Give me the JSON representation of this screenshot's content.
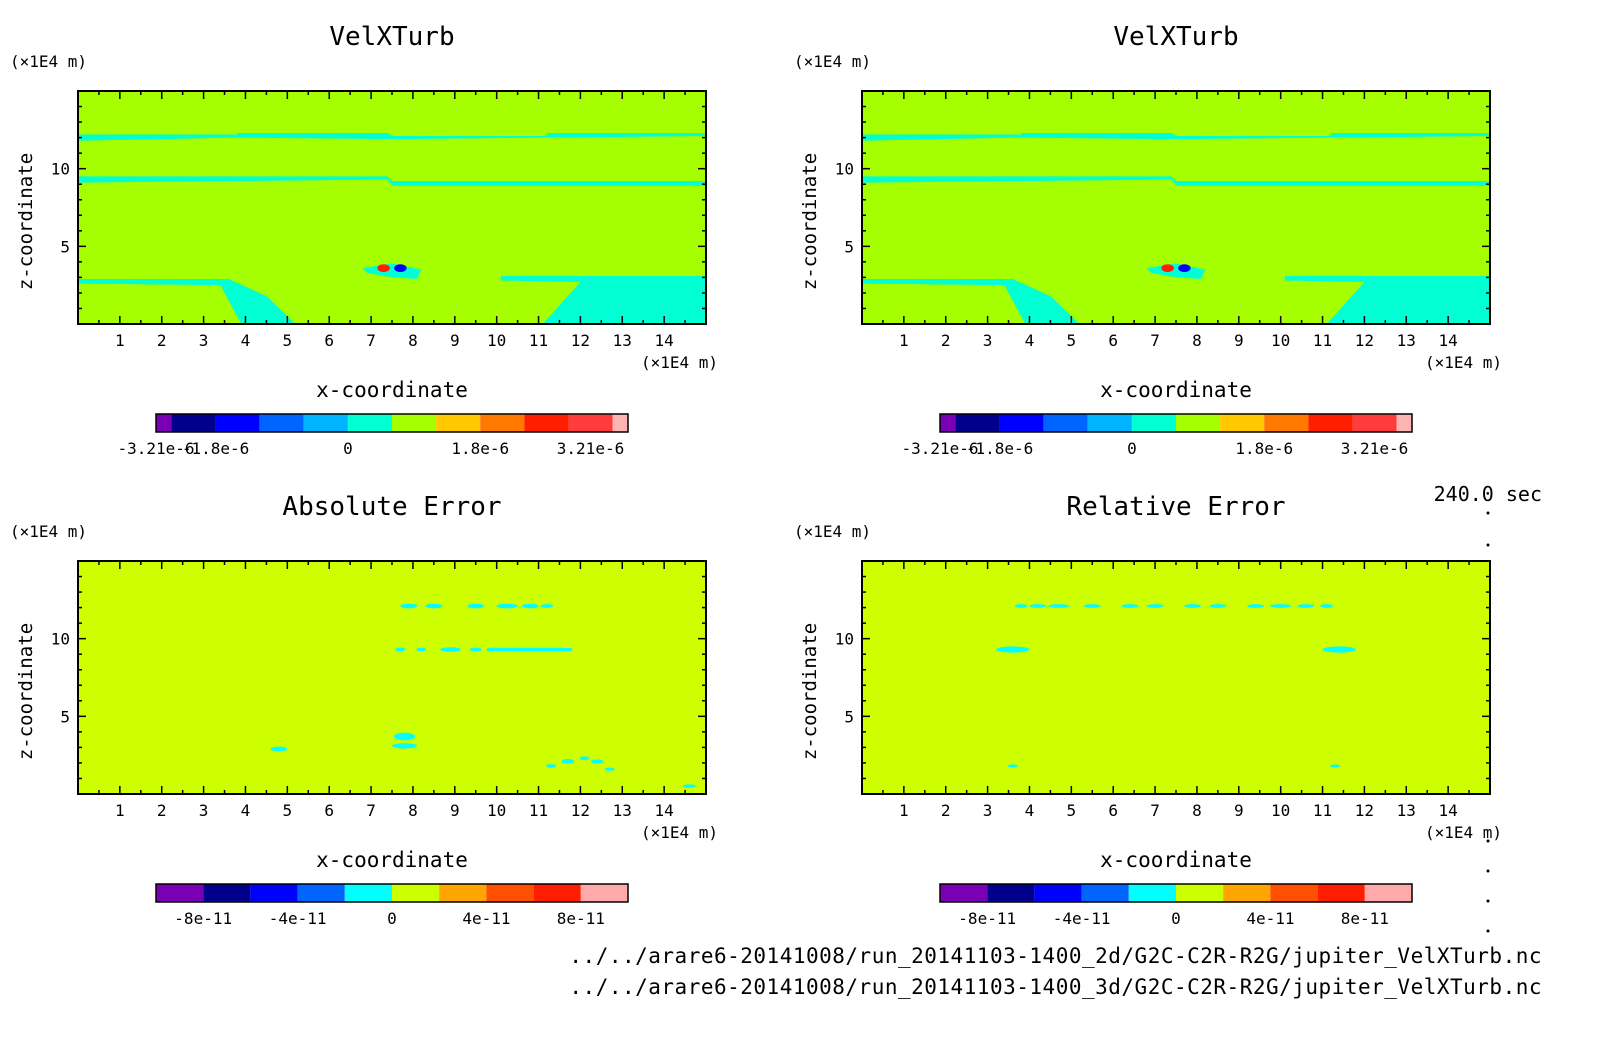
{
  "time_label": "240.0 sec",
  "footer": {
    "line1": "../../arare6-20141008/run_20141103-1400_2d/G2C-C2R-R2G/jupiter_VelXTurb.nc",
    "line2": "../../arare6-20141008/run_20141103-1400_3d/G2C-C2R-R2G/jupiter_VelXTurb.nc"
  },
  "chart_data": [
    {
      "type": "heatmap",
      "title": "VelXTurb",
      "xlabel": "x-coordinate",
      "ylabel": "z-coordinate",
      "x_unit": "(×1E4 m)",
      "y_unit": "(×1E4 m)",
      "xlim": [
        0,
        15
      ],
      "ylim": [
        0,
        15
      ],
      "x_ticks": [
        1,
        2,
        3,
        4,
        5,
        6,
        7,
        8,
        9,
        10,
        11,
        12,
        13,
        14
      ],
      "y_ticks": [
        5,
        10
      ],
      "background_color": "#a6ff00",
      "colorbar": {
        "colors": [
          "#7a00b4",
          "#00008c",
          "#0000ff",
          "#0064ff",
          "#00b4ff",
          "#00ffd2",
          "#a6ff00",
          "#ffc800",
          "#ff7800",
          "#ff1e00",
          "#ff3c3c",
          "#ffb4b4"
        ],
        "tick_labels": [
          "-3.21e-6",
          "-1.8e-6",
          "0",
          "1.8e-6",
          "3.21e-6"
        ],
        "tick_positions": [
          0,
          2,
          5,
          8,
          10.5
        ]
      },
      "regions": [
        {
          "color": "#00ffd2",
          "points": [
            [
              0,
              12.2
            ],
            [
              3.8,
              12.2
            ],
            [
              3.8,
              12.3
            ],
            [
              7.4,
              12.3
            ],
            [
              7.5,
              12.1
            ],
            [
              11.2,
              12.1
            ],
            [
              11.2,
              12.3
            ],
            [
              15,
              12.3
            ],
            [
              15,
              12.1
            ],
            [
              7.5,
              11.9
            ],
            [
              3.8,
              12.0
            ],
            [
              0,
              11.8
            ]
          ]
        },
        {
          "color": "#00ffd2",
          "points": [
            [
              0,
              9.5
            ],
            [
              7.4,
              9.5
            ],
            [
              7.5,
              9.2
            ],
            [
              15,
              9.2
            ],
            [
              15,
              8.9
            ],
            [
              7.5,
              8.9
            ],
            [
              7.4,
              9.3
            ],
            [
              0,
              9.1
            ]
          ]
        },
        {
          "color": "#00ffd2",
          "points": [
            [
              0,
              2.9
            ],
            [
              3.6,
              2.9
            ],
            [
              4.5,
              1.8
            ],
            [
              5.2,
              0
            ],
            [
              3.9,
              0
            ],
            [
              3.4,
              2.5
            ],
            [
              0,
              2.6
            ]
          ]
        },
        {
          "color": "#00ffd2",
          "points": [
            [
              10.1,
              3.1
            ],
            [
              15,
              3.1
            ],
            [
              15,
              0
            ],
            [
              11.1,
              0
            ],
            [
              12.0,
              2.7
            ],
            [
              10.1,
              2.8
            ]
          ]
        },
        {
          "color": "#00ffd2",
          "points": [
            [
              6.8,
              3.6
            ],
            [
              7.5,
              3.9
            ],
            [
              8.2,
              3.5
            ],
            [
              8.1,
              2.9
            ],
            [
              7.5,
              3.0
            ],
            [
              6.9,
              3.3
            ]
          ]
        }
      ],
      "spots": [
        {
          "x": 7.3,
          "z": 3.6,
          "rx": 0.15,
          "rz": 0.25,
          "color": "#ff1e00"
        },
        {
          "x": 7.7,
          "z": 3.6,
          "rx": 0.15,
          "rz": 0.25,
          "color": "#0000ff"
        }
      ]
    },
    {
      "type": "heatmap",
      "title": "VelXTurb",
      "xlabel": "x-coordinate",
      "ylabel": "z-coordinate",
      "x_unit": "(×1E4 m)",
      "y_unit": "(×1E4 m)",
      "xlim": [
        0,
        15
      ],
      "ylim": [
        0,
        15
      ],
      "x_ticks": [
        1,
        2,
        3,
        4,
        5,
        6,
        7,
        8,
        9,
        10,
        11,
        12,
        13,
        14
      ],
      "y_ticks": [
        5,
        10
      ],
      "background_color": "#a6ff00",
      "colorbar": {
        "colors": [
          "#7a00b4",
          "#00008c",
          "#0000ff",
          "#0064ff",
          "#00b4ff",
          "#00ffd2",
          "#a6ff00",
          "#ffc800",
          "#ff7800",
          "#ff1e00",
          "#ff3c3c",
          "#ffb4b4"
        ],
        "tick_labels": [
          "-3.21e-6",
          "-1.8e-6",
          "0",
          "1.8e-6",
          "3.21e-6"
        ],
        "tick_positions": [
          0,
          2,
          5,
          8,
          10.5
        ]
      },
      "regions": [
        {
          "color": "#00ffd2",
          "points": [
            [
              0,
              12.2
            ],
            [
              3.8,
              12.2
            ],
            [
              3.8,
              12.3
            ],
            [
              7.4,
              12.3
            ],
            [
              7.5,
              12.1
            ],
            [
              11.2,
              12.1
            ],
            [
              11.2,
              12.3
            ],
            [
              15,
              12.3
            ],
            [
              15,
              12.1
            ],
            [
              7.5,
              11.9
            ],
            [
              3.8,
              12.0
            ],
            [
              0,
              11.8
            ]
          ]
        },
        {
          "color": "#00ffd2",
          "points": [
            [
              0,
              9.5
            ],
            [
              7.4,
              9.5
            ],
            [
              7.5,
              9.2
            ],
            [
              15,
              9.2
            ],
            [
              15,
              8.9
            ],
            [
              7.5,
              8.9
            ],
            [
              7.4,
              9.3
            ],
            [
              0,
              9.1
            ]
          ]
        },
        {
          "color": "#00ffd2",
          "points": [
            [
              0,
              2.9
            ],
            [
              3.6,
              2.9
            ],
            [
              4.5,
              1.8
            ],
            [
              5.2,
              0
            ],
            [
              3.9,
              0
            ],
            [
              3.4,
              2.5
            ],
            [
              0,
              2.6
            ]
          ]
        },
        {
          "color": "#00ffd2",
          "points": [
            [
              10.1,
              3.1
            ],
            [
              15,
              3.1
            ],
            [
              15,
              0
            ],
            [
              11.1,
              0
            ],
            [
              12.0,
              2.7
            ],
            [
              10.1,
              2.8
            ]
          ]
        },
        {
          "color": "#00ffd2",
          "points": [
            [
              6.8,
              3.6
            ],
            [
              7.5,
              3.9
            ],
            [
              8.2,
              3.5
            ],
            [
              8.1,
              2.9
            ],
            [
              7.5,
              3.0
            ],
            [
              6.9,
              3.3
            ]
          ]
        }
      ],
      "spots": [
        {
          "x": 7.3,
          "z": 3.6,
          "rx": 0.15,
          "rz": 0.25,
          "color": "#ff1e00"
        },
        {
          "x": 7.7,
          "z": 3.6,
          "rx": 0.15,
          "rz": 0.25,
          "color": "#0000ff"
        }
      ]
    },
    {
      "type": "heatmap",
      "title": "Absolute Error",
      "xlabel": "x-coordinate",
      "ylabel": "z-coordinate",
      "x_unit": "(×1E4 m)",
      "y_unit": "(×1E4 m)",
      "xlim": [
        0,
        15
      ],
      "ylim": [
        0,
        15
      ],
      "x_ticks": [
        1,
        2,
        3,
        4,
        5,
        6,
        7,
        8,
        9,
        10,
        11,
        12,
        13,
        14
      ],
      "y_ticks": [
        5,
        10
      ],
      "background_color": "#cdff00",
      "colorbar": {
        "colors": [
          "#7a00b4",
          "#00008c",
          "#0000ff",
          "#0064ff",
          "#00ffff",
          "#cdff00",
          "#ffa500",
          "#ff5000",
          "#ff1e00",
          "#ffaaaa"
        ],
        "tick_labels": [
          "-8e-11",
          "-4e-11",
          "0",
          "4e-11",
          "8e-11"
        ],
        "tick_positions": [
          1,
          3,
          5,
          7,
          9
        ]
      },
      "regions": [
        {
          "color": "#00ffff",
          "points": [
            [
              10.0,
              9.4
            ],
            [
              11.8,
              9.4
            ],
            [
              11.8,
              9.2
            ],
            [
              10.0,
              9.2
            ]
          ]
        }
      ],
      "spots": [
        {
          "x": 7.9,
          "z": 12.1,
          "rx": 0.2,
          "rz": 0.15,
          "color": "#00ffff"
        },
        {
          "x": 8.5,
          "z": 12.1,
          "rx": 0.2,
          "rz": 0.15,
          "color": "#00ffff"
        },
        {
          "x": 9.5,
          "z": 12.1,
          "rx": 0.2,
          "rz": 0.15,
          "color": "#00ffff"
        },
        {
          "x": 10.25,
          "z": 12.1,
          "rx": 0.25,
          "rz": 0.15,
          "color": "#00ffff"
        },
        {
          "x": 10.8,
          "z": 12.1,
          "rx": 0.2,
          "rz": 0.15,
          "color": "#00ffff"
        },
        {
          "x": 11.2,
          "z": 12.1,
          "rx": 0.15,
          "rz": 0.12,
          "color": "#00ffff"
        },
        {
          "x": 7.7,
          "z": 9.3,
          "rx": 0.12,
          "rz": 0.12,
          "color": "#00ffff"
        },
        {
          "x": 8.2,
          "z": 9.3,
          "rx": 0.12,
          "rz": 0.12,
          "color": "#00ffff"
        },
        {
          "x": 8.9,
          "z": 9.3,
          "rx": 0.25,
          "rz": 0.15,
          "color": "#00ffff"
        },
        {
          "x": 9.5,
          "z": 9.3,
          "rx": 0.15,
          "rz": 0.12,
          "color": "#00ffff"
        },
        {
          "x": 9.9,
          "z": 9.3,
          "rx": 0.15,
          "rz": 0.12,
          "color": "#00ffff"
        },
        {
          "x": 7.8,
          "z": 3.7,
          "rx": 0.25,
          "rz": 0.25,
          "color": "#00ffff"
        },
        {
          "x": 7.8,
          "z": 3.1,
          "rx": 0.3,
          "rz": 0.17,
          "color": "#00ffff"
        },
        {
          "x": 4.8,
          "z": 2.9,
          "rx": 0.2,
          "rz": 0.15,
          "color": "#00ffff"
        },
        {
          "x": 11.3,
          "z": 1.8,
          "rx": 0.12,
          "rz": 0.12,
          "color": "#00ffff"
        },
        {
          "x": 11.7,
          "z": 2.1,
          "rx": 0.15,
          "rz": 0.15,
          "color": "#00ffff"
        },
        {
          "x": 12.1,
          "z": 2.3,
          "rx": 0.12,
          "rz": 0.12,
          "color": "#00ffff"
        },
        {
          "x": 12.4,
          "z": 2.1,
          "rx": 0.15,
          "rz": 0.12,
          "color": "#00ffff"
        },
        {
          "x": 12.7,
          "z": 1.6,
          "rx": 0.12,
          "rz": 0.1,
          "color": "#00ffff"
        },
        {
          "x": 14.6,
          "z": 0.5,
          "rx": 0.15,
          "rz": 0.12,
          "color": "#00ffff"
        }
      ]
    },
    {
      "type": "heatmap",
      "title": "Relative Error",
      "xlabel": "x-coordinate",
      "ylabel": "z-coordinate",
      "x_unit": "(×1E4 m)",
      "y_unit": "(×1E4 m)",
      "xlim": [
        0,
        15
      ],
      "ylim": [
        0,
        15
      ],
      "x_ticks": [
        1,
        2,
        3,
        4,
        5,
        6,
        7,
        8,
        9,
        10,
        11,
        12,
        13,
        14
      ],
      "y_ticks": [
        5,
        10
      ],
      "background_color": "#cdff00",
      "colorbar": {
        "colors": [
          "#7a00b4",
          "#00008c",
          "#0000ff",
          "#0064ff",
          "#00ffff",
          "#cdff00",
          "#ffa500",
          "#ff5000",
          "#ff1e00",
          "#ffaaaa"
        ],
        "tick_labels": [
          "-8e-11",
          "-4e-11",
          "0",
          "4e-11",
          "8e-11"
        ],
        "tick_positions": [
          1,
          3,
          5,
          7,
          9
        ]
      },
      "regions": [],
      "spots": [
        {
          "x": 3.8,
          "z": 12.1,
          "rx": 0.15,
          "rz": 0.12,
          "color": "#00ffff"
        },
        {
          "x": 4.2,
          "z": 12.1,
          "rx": 0.2,
          "rz": 0.12,
          "color": "#00ffff"
        },
        {
          "x": 4.7,
          "z": 12.1,
          "rx": 0.25,
          "rz": 0.12,
          "color": "#00ffff"
        },
        {
          "x": 5.5,
          "z": 12.1,
          "rx": 0.2,
          "rz": 0.12,
          "color": "#00ffff"
        },
        {
          "x": 6.4,
          "z": 12.1,
          "rx": 0.2,
          "rz": 0.12,
          "color": "#00ffff"
        },
        {
          "x": 7.0,
          "z": 12.1,
          "rx": 0.2,
          "rz": 0.12,
          "color": "#00ffff"
        },
        {
          "x": 7.9,
          "z": 12.1,
          "rx": 0.2,
          "rz": 0.12,
          "color": "#00ffff"
        },
        {
          "x": 8.5,
          "z": 12.1,
          "rx": 0.2,
          "rz": 0.12,
          "color": "#00ffff"
        },
        {
          "x": 9.4,
          "z": 12.1,
          "rx": 0.2,
          "rz": 0.12,
          "color": "#00ffff"
        },
        {
          "x": 10.0,
          "z": 12.1,
          "rx": 0.25,
          "rz": 0.12,
          "color": "#00ffff"
        },
        {
          "x": 10.6,
          "z": 12.1,
          "rx": 0.2,
          "rz": 0.12,
          "color": "#00ffff"
        },
        {
          "x": 11.1,
          "z": 12.1,
          "rx": 0.15,
          "rz": 0.12,
          "color": "#00ffff"
        },
        {
          "x": 3.6,
          "z": 9.3,
          "rx": 0.4,
          "rz": 0.2,
          "color": "#00ffff"
        },
        {
          "x": 11.4,
          "z": 9.3,
          "rx": 0.4,
          "rz": 0.2,
          "color": "#00ffff"
        },
        {
          "x": 3.6,
          "z": 1.8,
          "rx": 0.12,
          "rz": 0.1,
          "color": "#00ffff"
        },
        {
          "x": 11.3,
          "z": 1.8,
          "rx": 0.12,
          "rz": 0.1,
          "color": "#00ffff"
        }
      ]
    }
  ]
}
